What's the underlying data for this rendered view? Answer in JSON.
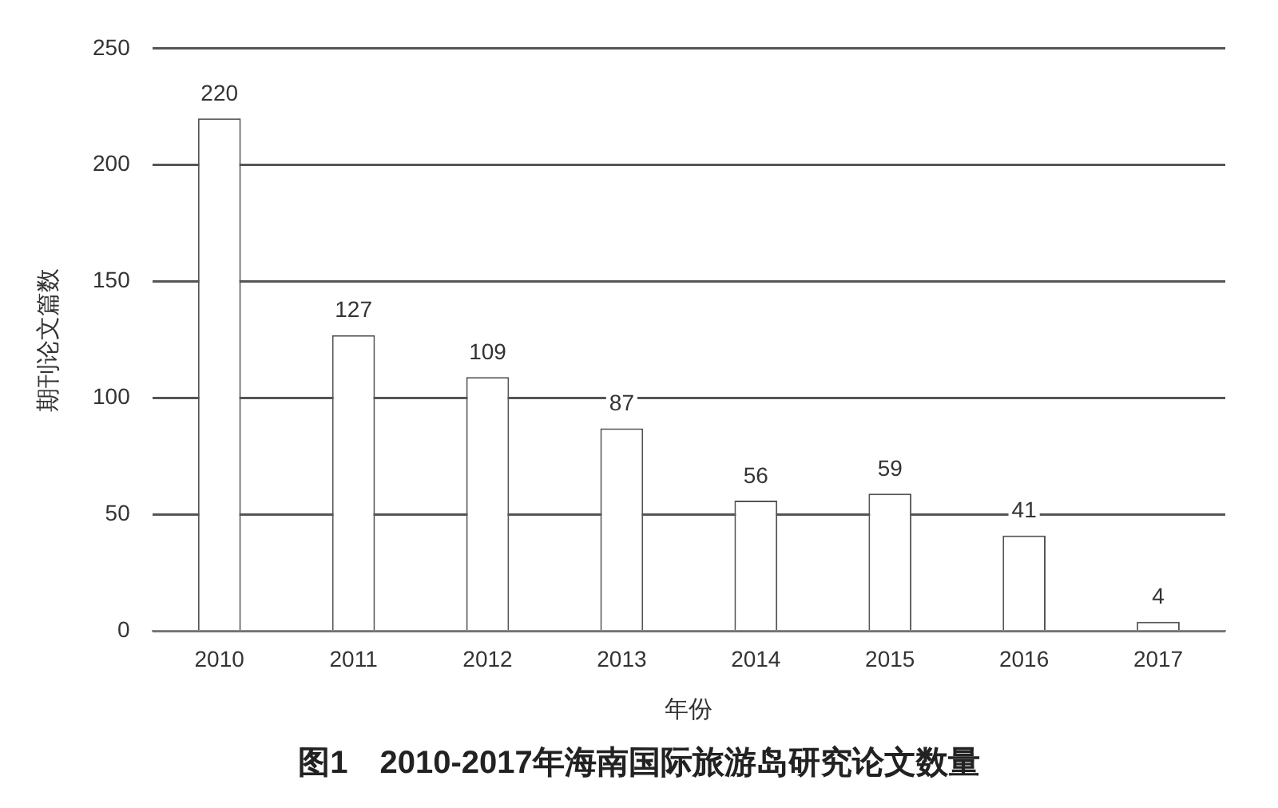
{
  "chart_data": {
    "type": "bar",
    "title": "图1　2010-2017年海南国际旅游岛研究论文数量",
    "xlabel": "年份",
    "ylabel": "期刊论文篇数",
    "categories": [
      "2010",
      "2011",
      "2012",
      "2013",
      "2014",
      "2015",
      "2016",
      "2017"
    ],
    "values": [
      220,
      127,
      109,
      87,
      56,
      59,
      41,
      4
    ],
    "color": "#ffffff",
    "ylim": [
      0,
      250
    ],
    "yticks": [
      0,
      50,
      100,
      150,
      200,
      250
    ],
    "grid": "y",
    "data_labels": true,
    "legend": false
  }
}
